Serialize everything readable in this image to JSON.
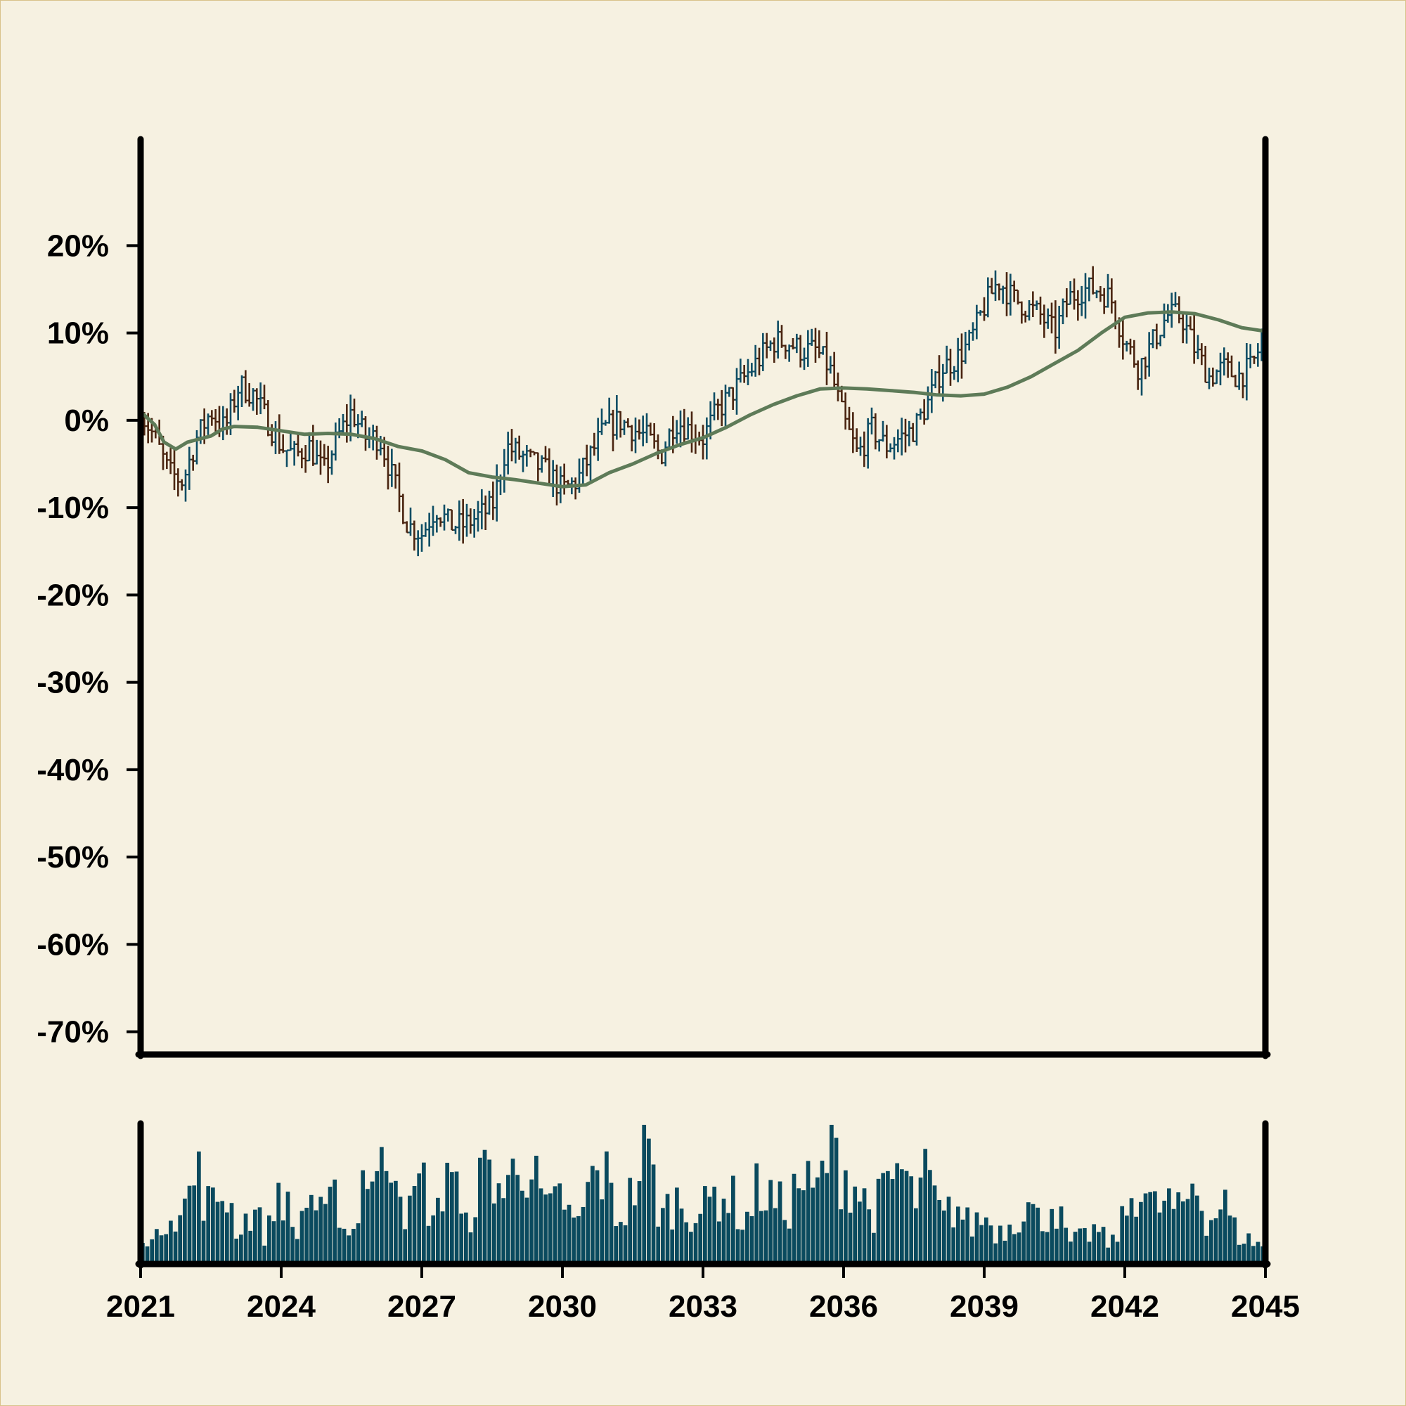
{
  "chart_data": {
    "type": "ohlc",
    "title": "",
    "xlabel": "",
    "ylabel": "",
    "ylim": [
      -71,
      28
    ],
    "xlim": [
      2021,
      2045
    ],
    "y_ticks": [
      "20%",
      "10%",
      "0%",
      "-10%",
      "-20%",
      "-30%",
      "-40%",
      "-50%",
      "-60%",
      "-70%"
    ],
    "y_tick_values": [
      20,
      10,
      0,
      -10,
      -20,
      -30,
      -40,
      -50,
      -60,
      -70
    ],
    "x_ticks": [
      "2021",
      "2024",
      "2027",
      "2030",
      "2033",
      "2036",
      "2039",
      "2042",
      "2045"
    ],
    "x_tick_values": [
      2021,
      2024,
      2027,
      2030,
      2033,
      2036,
      2039,
      2042,
      2045
    ],
    "grid": false,
    "up_color": "#0e4d64",
    "down_color": "#4a2511",
    "ma_color": "#5e7b58",
    "volume_color": "#0a4a5e",
    "close_series": [
      [
        2021.0,
        1
      ],
      [
        2021.3,
        -2
      ],
      [
        2021.6,
        -6
      ],
      [
        2021.9,
        -7
      ],
      [
        2022.2,
        -2
      ],
      [
        2022.5,
        1
      ],
      [
        2022.8,
        -1
      ],
      [
        2023.1,
        4
      ],
      [
        2023.4,
        3
      ],
      [
        2023.7,
        0
      ],
      [
        2024.0,
        -3
      ],
      [
        2024.3,
        -4
      ],
      [
        2024.6,
        -3
      ],
      [
        2024.9,
        -6
      ],
      [
        2025.2,
        -2
      ],
      [
        2025.5,
        1
      ],
      [
        2025.8,
        -2
      ],
      [
        2026.1,
        -2
      ],
      [
        2026.4,
        -7
      ],
      [
        2026.7,
        -12
      ],
      [
        2027.0,
        -13
      ],
      [
        2027.3,
        -10
      ],
      [
        2027.6,
        -12
      ],
      [
        2027.9,
        -12
      ],
      [
        2028.2,
        -11
      ],
      [
        2028.5,
        -10
      ],
      [
        2028.8,
        -3
      ],
      [
        2029.1,
        -4
      ],
      [
        2029.4,
        -5
      ],
      [
        2029.7,
        -6
      ],
      [
        2030.0,
        -8
      ],
      [
        2030.3,
        -7
      ],
      [
        2030.6,
        -4
      ],
      [
        2030.9,
        -1
      ],
      [
        2031.2,
        0
      ],
      [
        2031.5,
        -1
      ],
      [
        2031.8,
        -2
      ],
      [
        2032.1,
        -4
      ],
      [
        2032.4,
        0
      ],
      [
        2032.7,
        -1
      ],
      [
        2033.0,
        -2
      ],
      [
        2033.3,
        1
      ],
      [
        2033.6,
        3
      ],
      [
        2033.9,
        5
      ],
      [
        2034.2,
        7
      ],
      [
        2034.5,
        9
      ],
      [
        2034.8,
        9
      ],
      [
        2035.1,
        8
      ],
      [
        2035.4,
        8
      ],
      [
        2035.7,
        6
      ],
      [
        2036.0,
        0
      ],
      [
        2036.3,
        -4
      ],
      [
        2036.6,
        -1
      ],
      [
        2036.9,
        -3
      ],
      [
        2037.2,
        -2
      ],
      [
        2037.5,
        -1
      ],
      [
        2037.8,
        2
      ],
      [
        2038.1,
        6
      ],
      [
        2038.4,
        7
      ],
      [
        2038.7,
        9
      ],
      [
        2039.0,
        13
      ],
      [
        2039.3,
        16
      ],
      [
        2039.6,
        14
      ],
      [
        2039.9,
        13
      ],
      [
        2040.2,
        12
      ],
      [
        2040.5,
        10
      ],
      [
        2040.8,
        14
      ],
      [
        2041.1,
        15
      ],
      [
        2041.4,
        15
      ],
      [
        2041.7,
        14
      ],
      [
        2042.0,
        9
      ],
      [
        2042.3,
        6
      ],
      [
        2042.6,
        9
      ],
      [
        2042.9,
        12
      ],
      [
        2043.2,
        12
      ],
      [
        2043.5,
        8
      ],
      [
        2043.8,
        5
      ],
      [
        2044.1,
        6
      ],
      [
        2044.4,
        5
      ],
      [
        2044.7,
        6
      ],
      [
        2045.0,
        10
      ]
    ],
    "moving_average": [
      [
        2021.0,
        1
      ],
      [
        2021.3,
        -0.5
      ],
      [
        2021.5,
        -2.5
      ],
      [
        2021.75,
        -3.3
      ],
      [
        2022.0,
        -2.5
      ],
      [
        2022.5,
        -1.8
      ],
      [
        2022.75,
        -1.0
      ],
      [
        2023.0,
        -0.7
      ],
      [
        2023.5,
        -0.8
      ],
      [
        2024.0,
        -1.2
      ],
      [
        2024.5,
        -1.6
      ],
      [
        2025.0,
        -1.5
      ],
      [
        2025.5,
        -1.6
      ],
      [
        2026.0,
        -2.1
      ],
      [
        2026.5,
        -3.0
      ],
      [
        2027.0,
        -3.5
      ],
      [
        2027.5,
        -4.5
      ],
      [
        2028.0,
        -6.0
      ],
      [
        2028.5,
        -6.5
      ],
      [
        2029.0,
        -6.8
      ],
      [
        2029.5,
        -7.2
      ],
      [
        2030.0,
        -7.6
      ],
      [
        2030.5,
        -7.4
      ],
      [
        2031.0,
        -6.0
      ],
      [
        2031.5,
        -5.0
      ],
      [
        2032.0,
        -3.8
      ],
      [
        2032.5,
        -2.8
      ],
      [
        2033.0,
        -2.0
      ],
      [
        2033.5,
        -0.8
      ],
      [
        2034.0,
        0.6
      ],
      [
        2034.5,
        1.8
      ],
      [
        2035.0,
        2.8
      ],
      [
        2035.5,
        3.6
      ],
      [
        2036.0,
        3.7
      ],
      [
        2036.5,
        3.6
      ],
      [
        2037.0,
        3.4
      ],
      [
        2037.5,
        3.2
      ],
      [
        2038.0,
        2.9
      ],
      [
        2038.5,
        2.8
      ],
      [
        2039.0,
        3.0
      ],
      [
        2039.5,
        3.8
      ],
      [
        2040.0,
        5.0
      ],
      [
        2040.5,
        6.5
      ],
      [
        2041.0,
        8.0
      ],
      [
        2041.5,
        10.0
      ],
      [
        2042.0,
        11.8
      ],
      [
        2042.5,
        12.3
      ],
      [
        2043.0,
        12.4
      ],
      [
        2043.5,
        12.2
      ],
      [
        2044.0,
        11.5
      ],
      [
        2044.5,
        10.6
      ],
      [
        2045.0,
        10.2
      ]
    ],
    "volume": [
      [
        2021.0,
        0.28
      ],
      [
        2021.3,
        0.12
      ],
      [
        2021.6,
        0.42
      ],
      [
        2021.9,
        0.35
      ],
      [
        2022.2,
        0.66
      ],
      [
        2022.5,
        0.38
      ],
      [
        2022.8,
        0.55
      ],
      [
        2023.1,
        0.22
      ],
      [
        2023.4,
        0.4
      ],
      [
        2023.7,
        0.18
      ],
      [
        2024.0,
        0.6
      ],
      [
        2024.3,
        0.16
      ],
      [
        2024.6,
        0.52
      ],
      [
        2024.9,
        0.3
      ],
      [
        2025.2,
        0.48
      ],
      [
        2025.5,
        0.14
      ],
      [
        2025.8,
        0.72
      ],
      [
        2026.1,
        0.58
      ],
      [
        2026.4,
        0.95
      ],
      [
        2026.7,
        0.3
      ],
      [
        2027.0,
        0.62
      ],
      [
        2027.3,
        0.25
      ],
      [
        2027.6,
        0.86
      ],
      [
        2027.9,
        0.2
      ],
      [
        2028.2,
        0.55
      ],
      [
        2028.5,
        0.7
      ],
      [
        2028.8,
        0.45
      ],
      [
        2029.1,
        0.88
      ],
      [
        2029.4,
        0.6
      ],
      [
        2029.7,
        0.34
      ],
      [
        2030.0,
        0.5
      ],
      [
        2030.3,
        0.22
      ],
      [
        2030.6,
        0.58
      ],
      [
        2030.9,
        0.66
      ],
      [
        2031.2,
        0.3
      ],
      [
        2031.5,
        0.5
      ],
      [
        2031.8,
        0.85
      ],
      [
        2032.1,
        0.32
      ],
      [
        2032.4,
        0.46
      ],
      [
        2032.7,
        0.4
      ],
      [
        2033.0,
        0.36
      ],
      [
        2033.3,
        0.52
      ],
      [
        2033.6,
        0.48
      ],
      [
        2033.9,
        0.28
      ],
      [
        2034.2,
        0.56
      ],
      [
        2034.5,
        0.44
      ],
      [
        2034.8,
        0.38
      ],
      [
        2035.1,
        0.62
      ],
      [
        2035.4,
        0.46
      ],
      [
        2035.7,
        0.82
      ],
      [
        2036.0,
        0.68
      ],
      [
        2036.3,
        0.54
      ],
      [
        2036.6,
        0.36
      ],
      [
        2036.9,
        0.5
      ],
      [
        2037.2,
        0.7
      ],
      [
        2037.5,
        0.44
      ],
      [
        2037.8,
        0.62
      ],
      [
        2038.1,
        0.3
      ],
      [
        2038.4,
        0.42
      ],
      [
        2038.7,
        0.26
      ],
      [
        2039.0,
        0.34
      ],
      [
        2039.3,
        0.22
      ],
      [
        2039.6,
        0.3
      ],
      [
        2039.9,
        0.44
      ],
      [
        2040.2,
        0.28
      ],
      [
        2040.5,
        0.46
      ],
      [
        2040.8,
        0.14
      ],
      [
        2041.1,
        0.18
      ],
      [
        2041.4,
        0.24
      ],
      [
        2041.7,
        0.12
      ],
      [
        2042.0,
        0.32
      ],
      [
        2042.3,
        0.62
      ],
      [
        2042.6,
        0.38
      ],
      [
        2042.9,
        0.44
      ],
      [
        2043.2,
        0.34
      ],
      [
        2043.5,
        0.62
      ],
      [
        2043.8,
        0.28
      ],
      [
        2044.1,
        0.46
      ],
      [
        2044.4,
        0.2
      ],
      [
        2044.7,
        0.16
      ],
      [
        2045.0,
        0.12
      ]
    ]
  }
}
